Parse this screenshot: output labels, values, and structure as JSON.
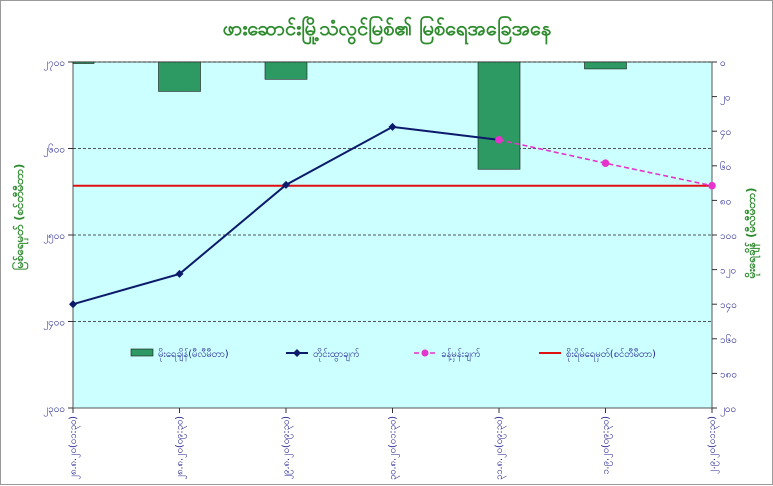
{
  "chart_data": {
    "type": "bar",
    "title": "ဖားဆောင်းမြို့သံလွင်မြစ်၏ မြစ်ရေအခြေအနေ",
    "categories": [
      "၂၈.၈.၂၀(၀၁:၃၀)",
      "၂၈.၈.၂၀(၀၉:၃၀)",
      "၂၉.၈.၂၀(၀၉:၃၀)",
      "၃၀.၈.၂၀(၀၁:၃၀)",
      "၃၁.၈.၂၀(၀၉:၃၀)",
      "၁.၉.၂၀(၀၉:၃၀)",
      "၂.၉.၂၀(၀၁:၃၀)"
    ],
    "y_left": {
      "label": "မြစ်ရေမှတ် (စင်တီမီတာ)",
      "ticks": [
        "၂၇၀၀",
        "၂၆၀၀",
        "၂၅၀၀",
        "၂၄၀၀",
        "၂၃၀၀"
      ],
      "tick_values": [
        2700,
        2600,
        2500,
        2400,
        2300
      ],
      "lim": [
        2300,
        2700
      ]
    },
    "y_right": {
      "label": "မိုးရေချိန် (မီလီမီတာ)",
      "ticks": [
        "၀",
        "၂၀",
        "၄၀",
        "၆၀",
        "၈၀",
        "၁၀၀",
        "၁၂၀",
        "၁၄၀",
        "၁၆၀",
        "၁၈၀",
        "၂၀၀"
      ],
      "tick_values": [
        0,
        20,
        40,
        60,
        80,
        100,
        120,
        140,
        160,
        180,
        200
      ],
      "lim": [
        0,
        200
      ],
      "inverted": true
    },
    "series": [
      {
        "name": "မိုးရေချိန်(မီလီမီတာ)",
        "kind": "bar",
        "axis": "right",
        "color": "#2e9a63",
        "values": [
          0.5,
          17,
          10,
          0,
          62,
          4,
          0
        ]
      },
      {
        "name": "တိုင်းထွာချက်",
        "kind": "line",
        "axis": "left",
        "color": "#0d1a6b",
        "values": [
          2420,
          2455,
          2558,
          2625,
          2610,
          null,
          null
        ]
      },
      {
        "name": "ခန့်မှန်းချက်",
        "kind": "dashed",
        "axis": "left",
        "color": "#e633cc",
        "values": [
          null,
          null,
          null,
          null,
          2610,
          2583,
          2557
        ]
      },
      {
        "name": "စိုးရိမ်ရေမှတ်(စင်တီမီတာ)",
        "kind": "hline",
        "axis": "left",
        "color": "#e01010",
        "value": 2557
      }
    ],
    "legend_placement": "inside-lower",
    "grid": "horizontal-dashed"
  },
  "colors": {
    "plot_bg": "#ccffff",
    "bar": "#2e9a63",
    "measured": "#0d1a6b",
    "forecast": "#e633cc",
    "danger": "#e01010",
    "title": "#2e8b2e"
  }
}
